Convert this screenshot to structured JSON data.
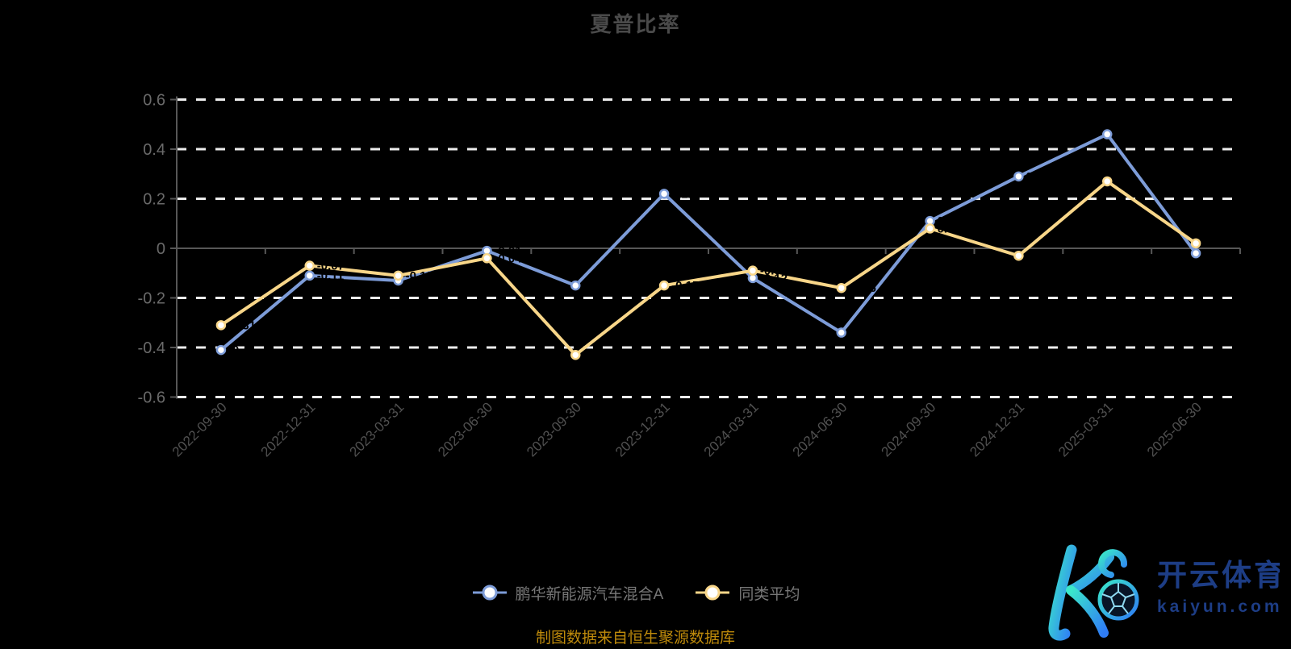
{
  "title": "夏普比率",
  "footer_note": "制图数据来自恒生聚源数据库",
  "watermark": {
    "brand_name": "开云体育",
    "brand_domain": "kaiyun.com"
  },
  "colors": {
    "background": "#000000",
    "series_fund": "#7D9CD8",
    "series_average": "#F8D689",
    "grid_line": "#ECECEC",
    "axis_line": "#575757",
    "y_tick_label": "#6A6A6A",
    "x_tick_label": "#505050",
    "title_text": "#4A4A4A",
    "legend_text": "#777777",
    "footer_gold": "#BE8A0B",
    "point_label": "#000000",
    "marker_fill": "#FFFFFF",
    "logo_text_blue": "#1D3D85",
    "logo_gradient_start": "#3BE8C9",
    "logo_gradient_end": "#2F7CF6"
  },
  "chart_data": {
    "type": "line",
    "title": "夏普比率",
    "categories": [
      "2022-09-30",
      "2022-12-31",
      "2023-03-31",
      "2023-06-30",
      "2023-09-30",
      "2023-12-31",
      "2024-03-31",
      "2024-06-30",
      "2024-09-30",
      "2024-12-31",
      "2025-03-31",
      "2025-06-30"
    ],
    "series": [
      {
        "name": "鹏华新能源汽车混合A",
        "color": "#7D9CD8",
        "values": [
          -0.41,
          -0.11,
          -0.13,
          -0.01,
          -0.15,
          0.22,
          -0.12,
          -0.34,
          0.11,
          0.29,
          0.46,
          -0.02
        ]
      },
      {
        "name": "同类平均",
        "color": "#F8D689",
        "values": [
          -0.31,
          -0.07,
          -0.11,
          -0.04,
          -0.43,
          -0.15,
          -0.09,
          -0.16,
          0.08,
          -0.03,
          0.27,
          0.02
        ]
      }
    ],
    "ylim": [
      -0.6,
      0.6
    ],
    "yticks": [
      0.6,
      0.4,
      0.2,
      0,
      -0.2,
      -0.4,
      -0.6
    ],
    "x_label_rotation": 45,
    "grid": "horizontal-dashed-white-on-black",
    "legend_position": "bottom-center",
    "point_label_note": "per-point value labels are rendered in black and only visible where they overlap the lines"
  }
}
